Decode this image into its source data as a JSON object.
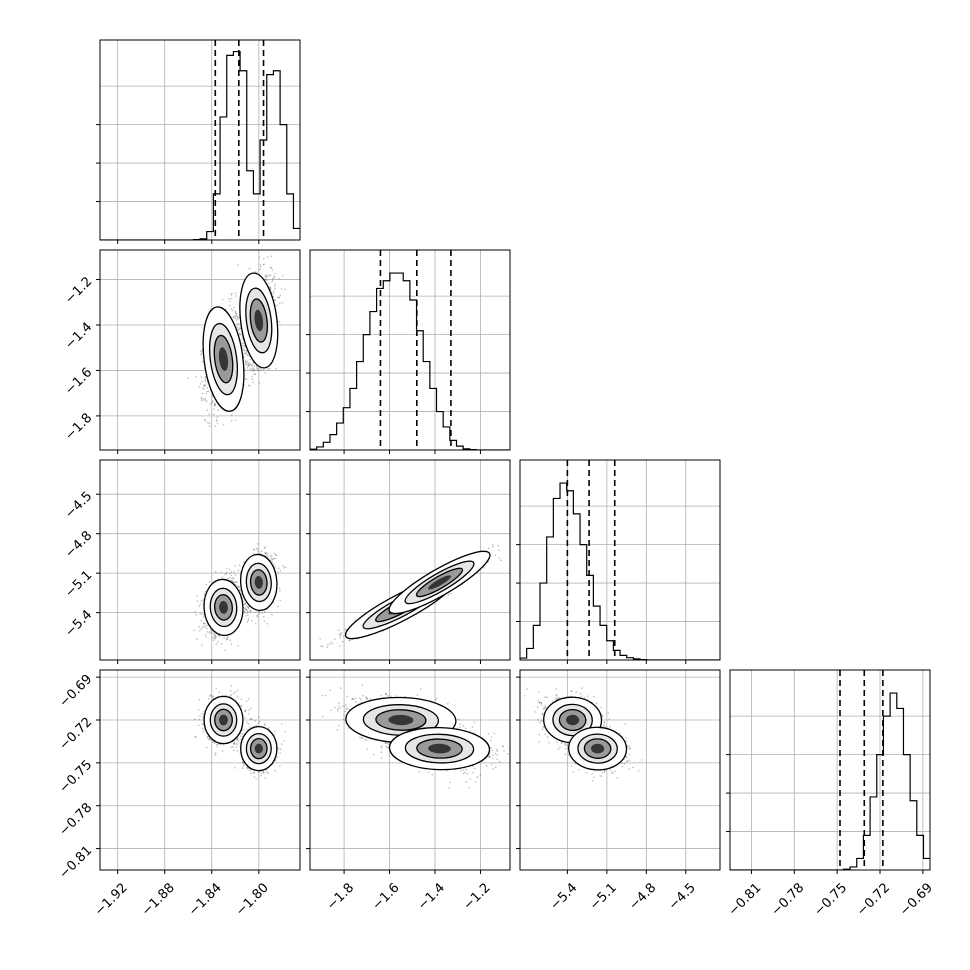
{
  "figure": {
    "type": "corner-plot"
  },
  "colors": {
    "ink": "#000000",
    "grid": "#b0b0b0",
    "background": "#ffffff"
  },
  "chart_data": {
    "type": "corner",
    "n_params": 4,
    "params": [
      {
        "range": [
          -1.935,
          -1.765
        ],
        "ticks": [
          -1.92,
          -1.88,
          -1.84,
          -1.8
        ],
        "tick_labels": [
          "−1.92",
          "−1.88",
          "−1.84",
          "−1.80"
        ],
        "quantiles": [
          -1.837,
          -1.817,
          -1.796
        ],
        "mode_centers": [
          -1.83,
          -1.8
        ]
      },
      {
        "range": [
          -1.95,
          -1.07
        ],
        "ticks": [
          -1.8,
          -1.6,
          -1.4,
          -1.2
        ],
        "tick_labels": [
          "−1.8",
          "−1.6",
          "−1.4",
          "−1.2"
        ],
        "quantiles": [
          -1.64,
          -1.48,
          -1.33
        ],
        "mode_centers": [
          -1.55,
          -1.38
        ]
      },
      {
        "range": [
          -5.76,
          -4.24
        ],
        "ticks": [
          -5.4,
          -5.1,
          -4.8,
          -4.5
        ],
        "tick_labels": [
          "−5.4",
          "−5.1",
          "−4.8",
          "−4.5"
        ],
        "quantiles": [
          -5.4,
          -5.235,
          -5.04
        ],
        "mode_centers": [
          -5.36,
          -5.17
        ]
      },
      {
        "range": [
          -0.825,
          -0.685
        ],
        "ticks": [
          -0.81,
          -0.78,
          -0.75,
          -0.72,
          -0.69
        ],
        "tick_labels": [
          "−0.81",
          "−0.78",
          "−0.75",
          "−0.72",
          "−0.69"
        ],
        "quantiles": [
          -0.748,
          -0.731,
          -0.718
        ],
        "mode_centers": [
          -0.72,
          -0.74
        ]
      }
    ],
    "histograms": [
      {
        "param": 0,
        "start": -1.935,
        "bin_width": 0.00567,
        "counts": [
          0,
          0,
          0,
          0,
          0,
          0,
          0,
          0,
          0,
          0,
          0,
          0,
          0,
          0,
          1,
          3,
          22,
          120,
          320,
          480,
          490,
          440,
          180,
          120,
          260,
          430,
          440,
          300,
          120,
          30
        ]
      },
      {
        "param": 1,
        "start": -1.95,
        "bin_width": 0.0293,
        "counts": [
          2,
          8,
          20,
          40,
          70,
          110,
          160,
          230,
          300,
          360,
          420,
          440,
          460,
          460,
          440,
          390,
          310,
          230,
          160,
          100,
          60,
          25,
          10,
          3,
          1,
          0,
          0,
          0,
          0,
          0
        ]
      },
      {
        "param": 2,
        "start": -5.76,
        "bin_width": 0.0507,
        "counts": [
          5,
          30,
          90,
          200,
          320,
          420,
          460,
          440,
          380,
          300,
          220,
          140,
          90,
          50,
          25,
          12,
          6,
          3,
          1,
          0,
          0,
          0,
          0,
          0,
          0,
          0,
          0,
          0,
          0,
          0
        ]
      },
      {
        "param": 3,
        "start": -0.825,
        "bin_width": 0.00467,
        "counts": [
          0,
          0,
          0,
          0,
          0,
          0,
          0,
          0,
          0,
          0,
          0,
          0,
          0,
          0,
          0,
          0,
          0,
          2,
          8,
          30,
          90,
          190,
          300,
          400,
          460,
          420,
          300,
          180,
          90,
          30
        ]
      }
    ],
    "hist_ylim": [
      0,
      520
    ],
    "modes": [
      {
        "weight": 0.5,
        "mean": [
          -1.83,
          -1.55,
          -5.36,
          -0.72
        ],
        "std": [
          0.0075,
          0.11,
          0.1,
          0.0075
        ]
      },
      {
        "weight": 0.5,
        "mean": [
          -1.8,
          -1.38,
          -5.17,
          -0.74
        ],
        "std": [
          0.007,
          0.1,
          0.1,
          0.007
        ]
      }
    ],
    "mode_correlations": [
      [
        [
          0,
          1,
          0.3
        ],
        [
          0,
          2,
          0.25
        ],
        [
          1,
          2,
          0.95
        ],
        [
          1,
          3,
          -0.3
        ],
        [
          2,
          3,
          -0.25
        ]
      ],
      [
        [
          0,
          1,
          0.3
        ],
        [
          0,
          2,
          0.25
        ],
        [
          1,
          2,
          0.95
        ],
        [
          1,
          3,
          -0.3
        ],
        [
          2,
          3,
          -0.25
        ]
      ]
    ],
    "grid": true,
    "contour_levels": 3
  }
}
